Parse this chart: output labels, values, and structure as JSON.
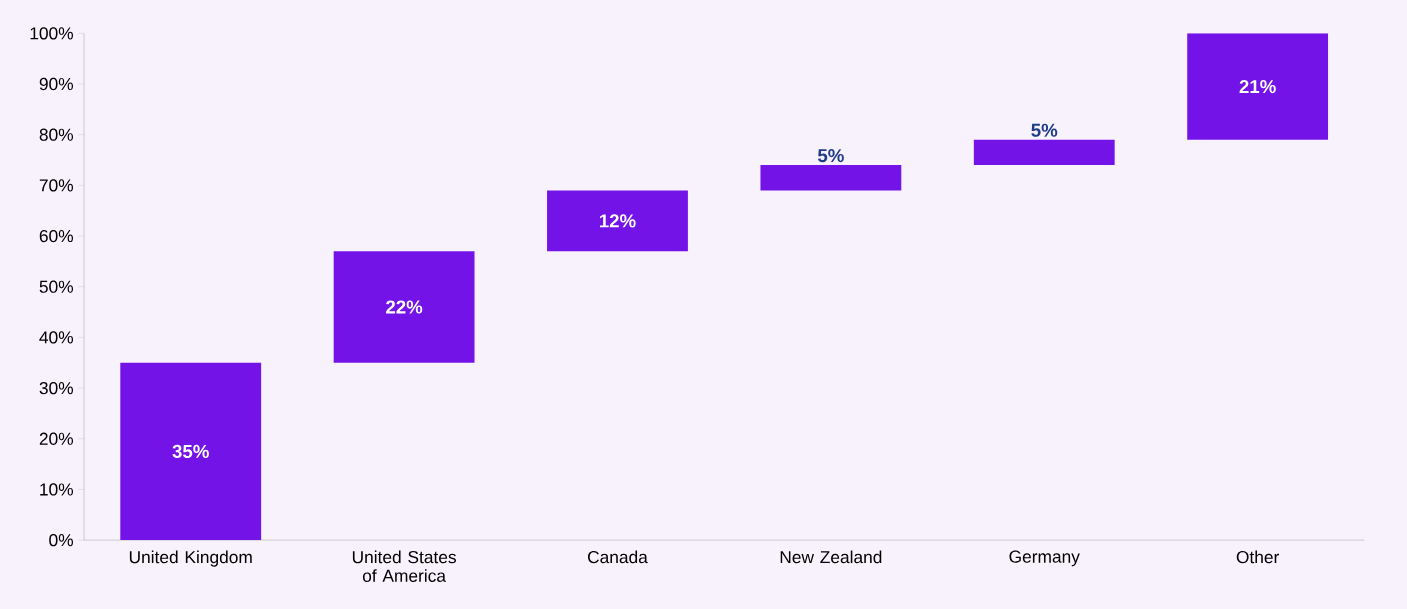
{
  "chart_data": {
    "type": "bar",
    "categories": [
      "United Kingdom",
      "United States of America",
      "Canada",
      "New Zealand",
      "Germany",
      "Other"
    ],
    "values": [
      35,
      22,
      12,
      5,
      5,
      21
    ],
    "base": [
      0,
      35,
      57,
      69,
      74,
      79
    ],
    "color": "#7413e8",
    "value_labels": [
      "35%",
      "22%",
      "12%",
      "5%",
      "5%",
      "21%"
    ],
    "ylim": [
      0,
      100
    ],
    "yticks": [
      {
        "value": 0,
        "label": "0%"
      },
      {
        "value": 10,
        "label": "10%"
      },
      {
        "value": 20,
        "label": "20%"
      },
      {
        "value": 30,
        "label": "30%"
      },
      {
        "value": 40,
        "label": "40%"
      },
      {
        "value": 50,
        "label": "50%"
      },
      {
        "value": 60,
        "label": "60%"
      },
      {
        "value": 70,
        "label": "70%"
      },
      {
        "value": 80,
        "label": "80%"
      },
      {
        "value": 90,
        "label": "90%"
      },
      {
        "value": 100,
        "label": "100%"
      }
    ],
    "grid": false
  }
}
